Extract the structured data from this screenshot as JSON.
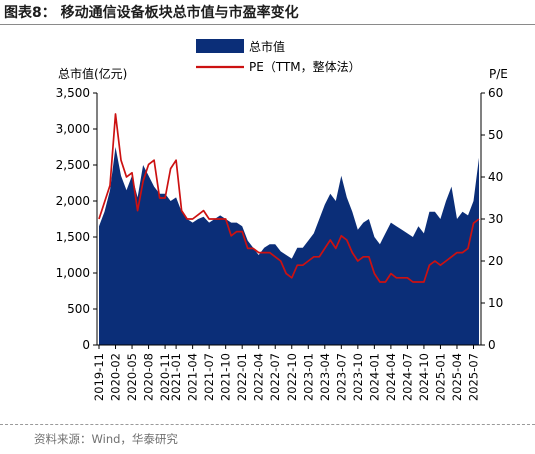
{
  "figure_title": "图表8：  移动通信设备板块总市值与市盈率变化",
  "source": "资料来源：Wind，华泰研究",
  "chart_data": {
    "type": "area+line",
    "y_left_label": "总市值(亿元)",
    "y_right_label": "P/E",
    "y_left_lim": [
      0,
      3500
    ],
    "y_right_lim": [
      0,
      60
    ],
    "y_left_ticks": [
      "0",
      "500",
      "1,000",
      "1,500",
      "2,000",
      "2,500",
      "3,000",
      "3,500"
    ],
    "y_right_ticks": [
      "0",
      "10",
      "20",
      "30",
      "40",
      "50",
      "60"
    ],
    "x_ticks": [
      "2019-11",
      "2020-02",
      "2020-05",
      "2020-08",
      "2020-11",
      "2021-01",
      "2021-04",
      "2021-07",
      "2021-10",
      "2022-01",
      "2022-04",
      "2022-07",
      "2022-10",
      "2023-01",
      "2023-04",
      "2023-07",
      "2023-10",
      "2024-01",
      "2024-04",
      "2024-07",
      "2024-10",
      "2025-01",
      "2025-04",
      "2025-07"
    ],
    "legend": [
      "总市值",
      "PE（TTM，整体法）"
    ],
    "grid": false,
    "colors": {
      "market_cap": "#0b2e78",
      "pe": "#cc1111"
    },
    "series": [
      {
        "name": "总市值",
        "axis": "left",
        "kind": "area",
        "x": [
          "2019-11",
          "2019-12",
          "2020-01",
          "2020-02",
          "2020-03",
          "2020-04",
          "2020-05",
          "2020-06",
          "2020-07",
          "2020-08",
          "2020-09",
          "2020-10",
          "2020-11",
          "2020-12",
          "2021-01",
          "2021-02",
          "2021-03",
          "2021-04",
          "2021-05",
          "2021-06",
          "2021-07",
          "2021-08",
          "2021-09",
          "2021-10",
          "2021-11",
          "2021-12",
          "2022-01",
          "2022-02",
          "2022-03",
          "2022-04",
          "2022-05",
          "2022-06",
          "2022-07",
          "2022-08",
          "2022-09",
          "2022-10",
          "2022-11",
          "2022-12",
          "2023-01",
          "2023-02",
          "2023-03",
          "2023-04",
          "2023-05",
          "2023-06",
          "2023-07",
          "2023-08",
          "2023-09",
          "2023-10",
          "2023-11",
          "2023-12",
          "2024-01",
          "2024-02",
          "2024-03",
          "2024-04",
          "2024-05",
          "2024-06",
          "2024-07",
          "2024-08",
          "2024-09",
          "2024-10",
          "2024-11",
          "2024-12",
          "2025-01",
          "2025-02",
          "2025-03",
          "2025-04",
          "2025-05",
          "2025-06",
          "2025-07",
          "2025-08"
        ],
        "values": [
          1650,
          1850,
          2150,
          2750,
          2350,
          2150,
          2350,
          2050,
          2500,
          2350,
          2200,
          2100,
          2100,
          2000,
          2050,
          1850,
          1750,
          1700,
          1750,
          1780,
          1700,
          1750,
          1800,
          1750,
          1700,
          1700,
          1650,
          1450,
          1350,
          1250,
          1350,
          1400,
          1400,
          1300,
          1250,
          1200,
          1350,
          1350,
          1450,
          1550,
          1750,
          1950,
          2100,
          2000,
          2350,
          2050,
          1850,
          1600,
          1700,
          1750,
          1500,
          1400,
          1550,
          1700,
          1650,
          1600,
          1550,
          1500,
          1650,
          1550,
          1850,
          1850,
          1750,
          2000,
          2200,
          1750,
          1850,
          1800,
          2000,
          2600
        ]
      },
      {
        "name": "PE（TTM，整体法）",
        "axis": "right",
        "kind": "line",
        "x": [
          "2019-11",
          "2019-12",
          "2020-01",
          "2020-02",
          "2020-03",
          "2020-04",
          "2020-05",
          "2020-06",
          "2020-07",
          "2020-08",
          "2020-09",
          "2020-10",
          "2020-11",
          "2020-12",
          "2021-01",
          "2021-02",
          "2021-03",
          "2021-04",
          "2021-05",
          "2021-06",
          "2021-07",
          "2021-08",
          "2021-09",
          "2021-10",
          "2021-11",
          "2021-12",
          "2022-01",
          "2022-02",
          "2022-03",
          "2022-04",
          "2022-05",
          "2022-06",
          "2022-07",
          "2022-08",
          "2022-09",
          "2022-10",
          "2022-11",
          "2022-12",
          "2023-01",
          "2023-02",
          "2023-03",
          "2023-04",
          "2023-05",
          "2023-06",
          "2023-07",
          "2023-08",
          "2023-09",
          "2023-10",
          "2023-11",
          "2023-12",
          "2024-01",
          "2024-02",
          "2024-03",
          "2024-04",
          "2024-05",
          "2024-06",
          "2024-07",
          "2024-08",
          "2024-09",
          "2024-10",
          "2024-11",
          "2024-12",
          "2025-01",
          "2025-02",
          "2025-03",
          "2025-04",
          "2025-05",
          "2025-06",
          "2025-07",
          "2025-08"
        ],
        "values": [
          30,
          34,
          38,
          55,
          44,
          40,
          41,
          32,
          39,
          43,
          44,
          35,
          35,
          42,
          44,
          32,
          30,
          30,
          31,
          32,
          30,
          30,
          30,
          30,
          26,
          27,
          27,
          23,
          23,
          22,
          22,
          22,
          21,
          20,
          17,
          16,
          19,
          19,
          20,
          21,
          21,
          23,
          25,
          23,
          26,
          25,
          22,
          20,
          21,
          21,
          17,
          15,
          15,
          17,
          16,
          16,
          16,
          15,
          15,
          15,
          19,
          20,
          19,
          20,
          21,
          22,
          22,
          23,
          29,
          30
        ]
      }
    ]
  }
}
